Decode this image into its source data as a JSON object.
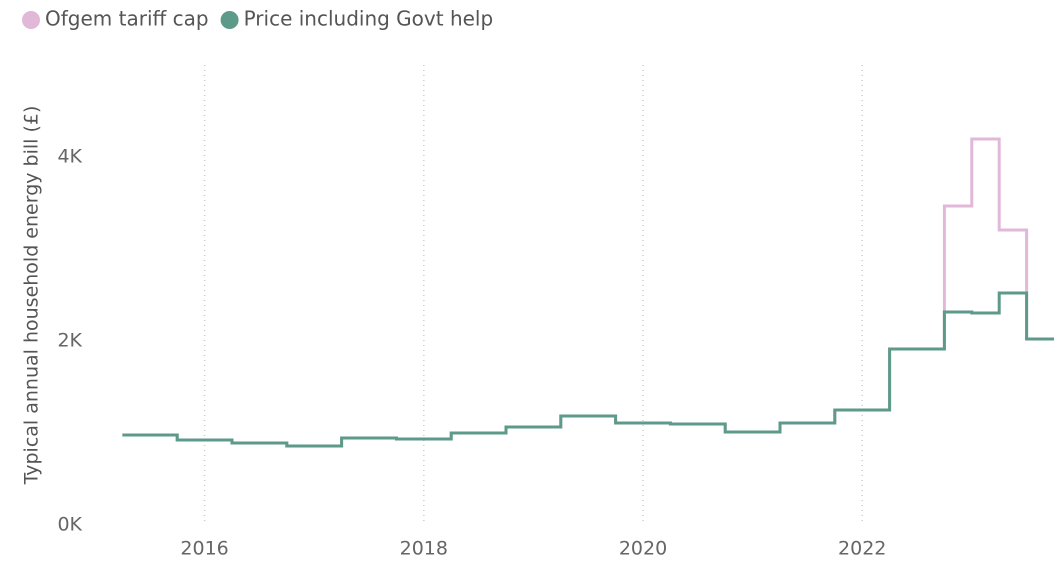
{
  "chart_data": {
    "type": "step",
    "legend": "top-left",
    "y_label": "Typical annual household energy bill (£)",
    "x": [
      2015.25,
      2015.75,
      2016.25,
      2016.75,
      2017.25,
      2017.75,
      2018.25,
      2018.75,
      2019.25,
      2019.75,
      2020.25,
      2020.75,
      2021.25,
      2021.75,
      2022.25,
      2022.75,
      2023.0,
      2023.25,
      2023.5
    ],
    "series": [
      {
        "name": "Ofgem tariff cap",
        "color": "#e2b8d9",
        "values": [
          978,
          924,
          891,
          859,
          946,
          935,
          1000,
          1065,
          1185,
          1109,
          1098,
          1011,
          1109,
          1250,
          1913,
          3467,
          4196,
          3207,
          2022
        ]
      },
      {
        "name": "Price including Govt help",
        "color": "#5e9a8a",
        "values": [
          978,
          924,
          891,
          859,
          946,
          935,
          1000,
          1065,
          1185,
          1109,
          1098,
          1011,
          1109,
          1250,
          1913,
          2315,
          2304,
          2522,
          2022
        ]
      }
    ],
    "xlim": [
      2015,
      2023.75
    ],
    "xticks": [
      2016,
      2018,
      2020,
      2022
    ],
    "ylim": [
      0,
      5000
    ],
    "yticks": [
      {
        "value": 0,
        "label": "0K"
      },
      {
        "value": 2000,
        "label": "2K"
      },
      {
        "value": 4000,
        "label": "4K"
      }
    ],
    "grid": "x"
  }
}
